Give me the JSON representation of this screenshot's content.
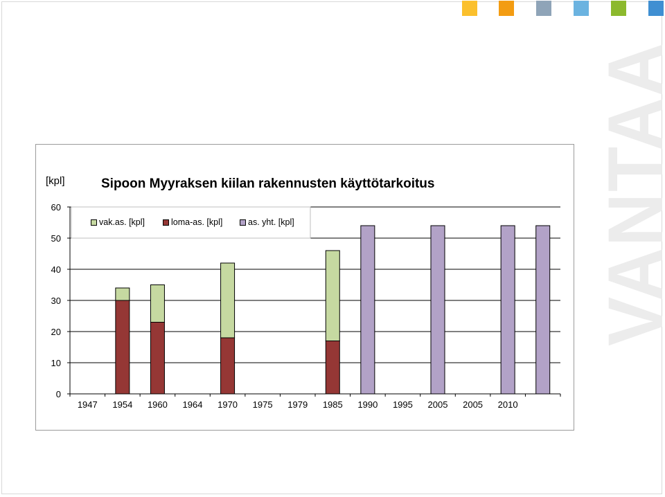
{
  "swatch_colors": [
    "#FBC02D",
    "#F39C12",
    "#8FA4B8",
    "#6BB3E0",
    "#8CB92D",
    "#3F8FD2"
  ],
  "watermark": "VANTAA",
  "chart_data": {
    "type": "bar",
    "stacked": true,
    "title": "Sipoon Myyraksen kiilan rakennusten käyttötarkoitus",
    "ylabel": "[kpl]",
    "xlabel": "",
    "ylim": [
      0,
      60
    ],
    "yticks": [
      0,
      10,
      20,
      30,
      40,
      50,
      60
    ],
    "categories": [
      "1947",
      "1954",
      "1960",
      "1964",
      "1970",
      "1975",
      "1979",
      "1985",
      "1990",
      "1995",
      "2005",
      "2005",
      "2010",
      ""
    ],
    "series": [
      {
        "name": "vak.as. [kpl]",
        "color": "#C6D9A1",
        "values": [
          0,
          4,
          12,
          0,
          24,
          0,
          0,
          29,
          0,
          0,
          0,
          0,
          0,
          0
        ]
      },
      {
        "name": "loma-as. [kpl]",
        "color": "#953735",
        "values": [
          0,
          30,
          23,
          0,
          18,
          0,
          0,
          17,
          0,
          0,
          0,
          0,
          0,
          0
        ]
      },
      {
        "name": "as. yht. [kpl]",
        "color": "#B2A2C7",
        "values": [
          0,
          0,
          0,
          0,
          0,
          0,
          0,
          0,
          54,
          0,
          54,
          0,
          54,
          54
        ]
      }
    ],
    "stack_order": [
      "loma-as. [kpl]",
      "vak.as. [kpl]",
      "as. yht. [kpl]"
    ],
    "legend_position": "top-left",
    "grid": true
  }
}
